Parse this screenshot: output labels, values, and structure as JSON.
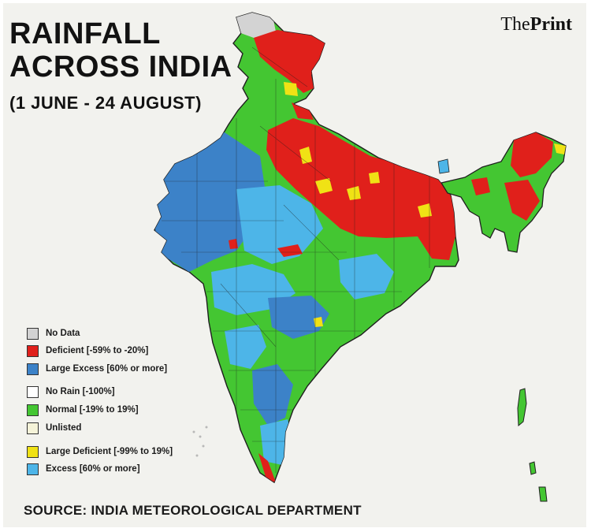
{
  "title_line1": "RAINFALL",
  "title_line2": "ACROSS INDIA",
  "subtitle": "(1 JUNE - 24 AUGUST)",
  "brand": {
    "prefix": "The",
    "suffix": "Print"
  },
  "source": "SOURCE: INDIA METEOROLOGICAL DEPARTMENT",
  "colors": {
    "no_data": "#d3d3d3",
    "deficient": "#e0201b",
    "large_excess": "#3c82c8",
    "no_rain": "#ffffff",
    "normal": "#44c632",
    "unlisted": "#f5f3d8",
    "large_deficient": "#f0e215",
    "excess": "#4db5e8",
    "background": "#f2f2ee",
    "border": "#1f1f1f"
  },
  "legend": [
    {
      "key": "no_data",
      "label": "No Data",
      "color": "#d3d3d3"
    },
    {
      "key": "deficient",
      "label": "Deficient  [-59% to -20%]",
      "color": "#e0201b"
    },
    {
      "key": "large_excess",
      "label": "Large Excess [60% or more]",
      "color": "#3c82c8"
    },
    {
      "key": "no_rain",
      "label": "No Rain [-100%]",
      "color": "#ffffff"
    },
    {
      "key": "normal",
      "label": "Normal [-19% to 19%]",
      "color": "#44c632"
    },
    {
      "key": "unlisted",
      "label": "Unlisted",
      "color": "#f5f3d8"
    },
    {
      "key": "large_deficient",
      "label": "Large Deficient [-99% to 19%]",
      "color": "#f0e215"
    },
    {
      "key": "excess",
      "label": "Excess [60% or more]",
      "color": "#4db5e8"
    }
  ]
}
